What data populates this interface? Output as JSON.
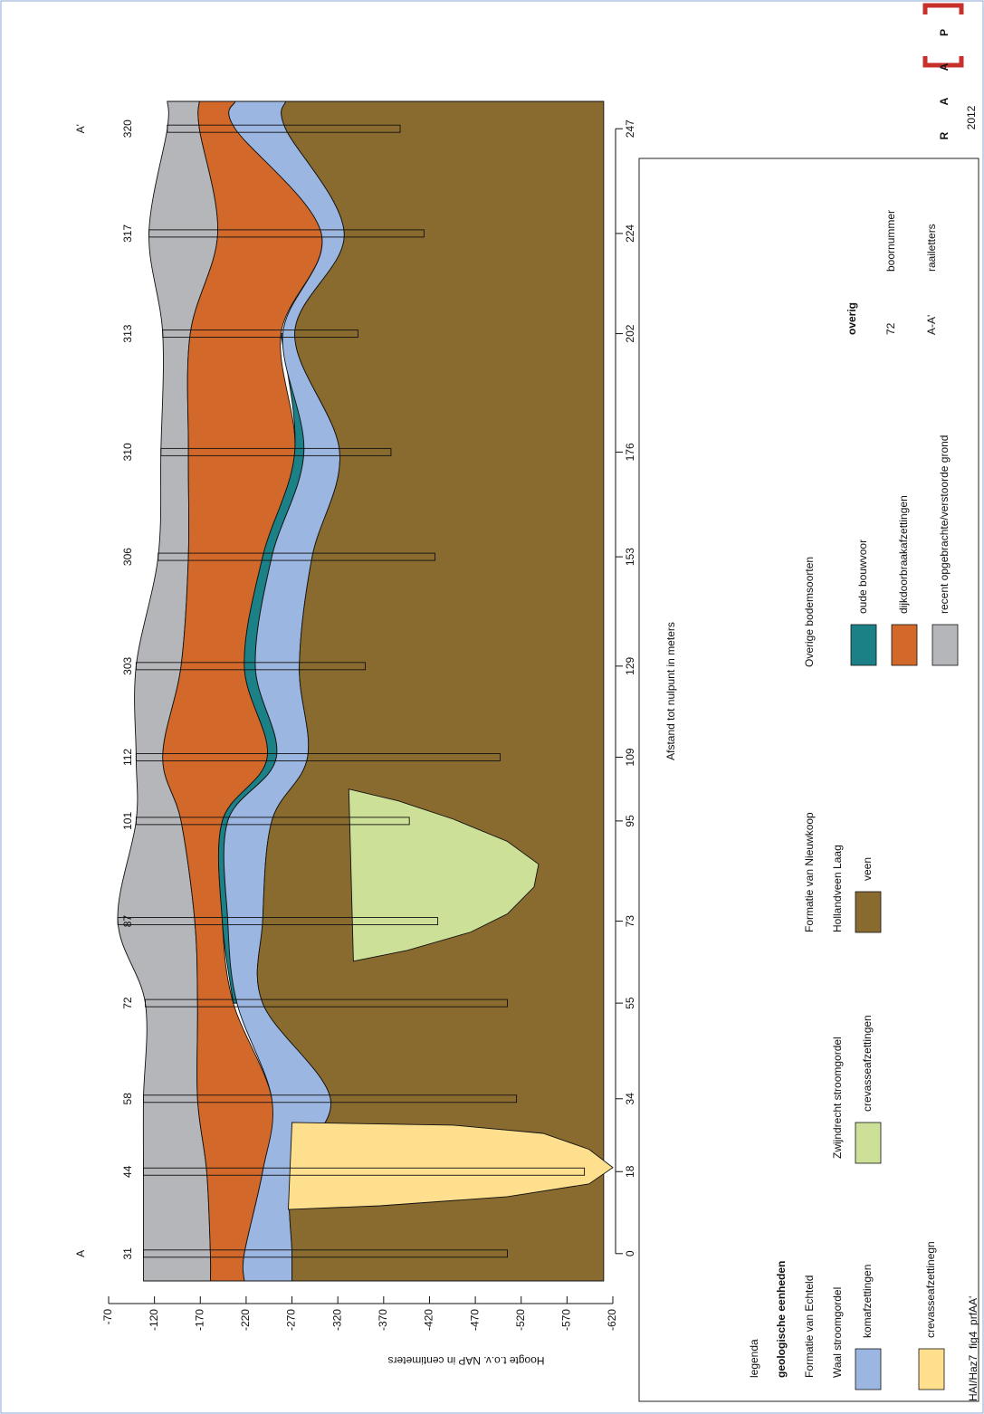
{
  "chart_data": {
    "type": "profile",
    "profile_labels": [
      "A",
      "A'"
    ],
    "x_label": "Afstand tot nulpunt in meters",
    "y_label": "Hoogte t.o.v. NAP in centimeters",
    "x": [
      0,
      18,
      34,
      55,
      73,
      95,
      109,
      129,
      153,
      176,
      202,
      224,
      247
    ],
    "xlim": [
      -6,
      253
    ],
    "xticks": [
      0,
      18,
      34,
      55,
      73,
      95,
      109,
      129,
      153,
      176,
      202,
      224,
      247
    ],
    "ylim": [
      -70,
      -620
    ],
    "yticks": [
      -70,
      -120,
      -170,
      -220,
      -270,
      -320,
      -370,
      -420,
      -470,
      -520,
      -570,
      -620
    ],
    "boreholes": {
      "numbers": [
        31,
        44,
        58,
        72,
        87,
        101,
        112,
        303,
        306,
        310,
        313,
        317,
        320
      ],
      "depth": [
        -505,
        -589,
        -515,
        -505,
        -429,
        -398,
        -497,
        -350,
        -426,
        -378,
        -342,
        -414,
        -388
      ]
    },
    "series": [
      {
        "name": "recent opgebrachte/verstoorde grond",
        "color": "#b5b6b9",
        "top": [
          -108,
          -108,
          -108,
          -110,
          -80,
          -100,
          -100,
          -100,
          -124,
          -127,
          -129,
          -114,
          -134
        ],
        "bottom": [
          -181,
          -177,
          -167,
          -167,
          -164,
          -149,
          -129,
          -149,
          -157,
          -157,
          -159,
          -189,
          -169
        ]
      },
      {
        "name": "dijkdoorbraakafzettingen",
        "color": "#d2692b",
        "top": [
          -181,
          -177,
          -167,
          -167,
          -164,
          -149,
          -129,
          -149,
          -157,
          -157,
          -159,
          -189,
          -169
        ],
        "bottom": [
          -218,
          -238,
          -248,
          -206,
          -194,
          -194,
          -243,
          -218,
          -238,
          -273,
          -258,
          -302,
          -208
        ]
      },
      {
        "name": "oude bouwvoor",
        "color": "#1b8186",
        "top": [
          null,
          null,
          null,
          -206,
          -194,
          -194,
          -243,
          -218,
          -238,
          -273,
          -258,
          null,
          null
        ],
        "bottom": [
          null,
          null,
          null,
          -210,
          -200,
          -200,
          -253,
          -230,
          -248,
          -283,
          -260,
          null,
          null
        ]
      },
      {
        "name": "komafzettingen",
        "color": "#9bb6e0",
        "top": [
          -218,
          -238,
          -248,
          -210,
          -200,
          -200,
          -253,
          -230,
          -248,
          -283,
          -260,
          -302,
          -208
        ],
        "bottom": [
          -270,
          -270,
          -312,
          -238,
          -238,
          -248,
          -287,
          -278,
          -292,
          -322,
          -273,
          -327,
          -263
        ]
      },
      {
        "name": "veen",
        "color": "#8a6b2f",
        "top": [
          -270,
          -270,
          -312,
          -238,
          -238,
          -248,
          -287,
          -278,
          -292,
          -322,
          -273,
          -327,
          -263
        ],
        "bottom": [
          -610,
          -610,
          -610,
          -610,
          -610,
          -610,
          -610,
          -610,
          -610,
          -610,
          -610,
          -610,
          -610
        ]
      }
    ],
    "bodies": [
      {
        "name": "crevasseafzettinegn",
        "color": "#fddf8e",
        "distance": [
          9.7,
          28.8,
          28.2,
          26.4,
          22.9,
          18.9,
          15.3,
          12.5,
          10.5
        ],
        "depth": [
          -266,
          -270,
          -446,
          -544,
          -594,
          -620,
          -594,
          -505,
          -366
        ]
      },
      {
        "name": "crevasseafzettingen",
        "color": "#cde098",
        "distance": [
          102,
          64.2,
          66.6,
          70.6,
          74.6,
          80.5,
          85.5,
          90.5,
          95.4,
          99.4
        ],
        "depth": [
          -332,
          -337,
          -396,
          -465,
          -505,
          -534,
          -539,
          -505,
          -446,
          -386
        ]
      }
    ],
    "legend": {
      "title": "legenda",
      "subtitle": "geologische eenheden",
      "formations": [
        {
          "name": "Formatie van Echteld",
          "units": [
            "Waal stroomgordel",
            "Zwijndrecht stroomgordel"
          ]
        },
        {
          "name": "Formatie van Nieuwkoop",
          "units": [
            "Hollandveen Laag"
          ]
        },
        {
          "name": "Overige bodemsoorten"
        }
      ],
      "other": {
        "title": "overig",
        "items": [
          {
            "symbol": 72,
            "label": "boornummer"
          },
          {
            "symbol": "A-A'",
            "label": "raailetters"
          }
        ]
      }
    }
  },
  "logo": {
    "letters": [
      "R",
      "A",
      "A",
      "P"
    ],
    "year": "2012"
  },
  "footer": "HAI/Haz7_fig4_prfAA'"
}
